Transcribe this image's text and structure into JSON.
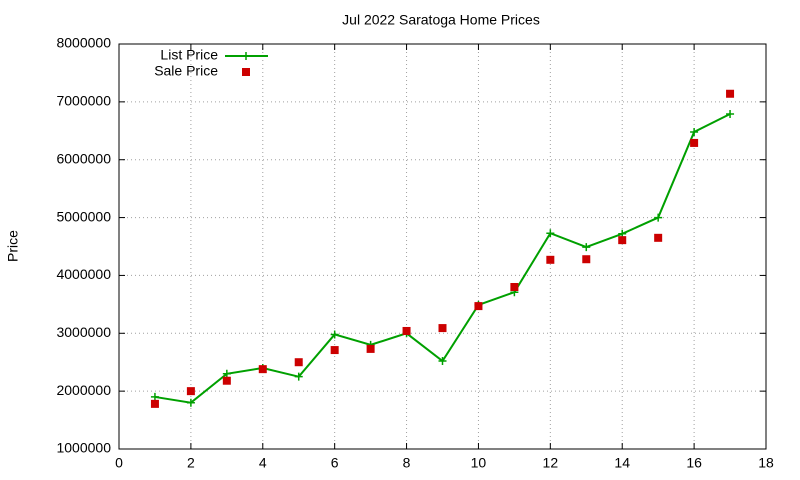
{
  "chart_data": {
    "type": "line",
    "title": "Jul 2022 Saratoga Home Prices",
    "y_label": "Price",
    "x": [
      1,
      2,
      3,
      4,
      5,
      6,
      7,
      8,
      9,
      10,
      11,
      12,
      13,
      14,
      15,
      16,
      17
    ],
    "series": [
      {
        "name": "List Price",
        "color": "#00a000",
        "marker": "plus",
        "values": [
          1900000,
          1800000,
          2300000,
          2400000,
          2250000,
          2980000,
          2800000,
          3000000,
          2520000,
          3490000,
          3710000,
          4730000,
          4490000,
          4720000,
          5000000,
          6480000,
          6790000
        ]
      },
      {
        "name": "Sale Price",
        "color": "#cc0000",
        "marker": "square",
        "values": [
          1780000,
          2000000,
          2180000,
          2380000,
          2500000,
          2710000,
          2730000,
          3040000,
          3090000,
          3470000,
          3800000,
          4270000,
          4280000,
          4610000,
          4650000,
          6290000,
          7140000
        ]
      }
    ],
    "xlim": [
      0,
      18
    ],
    "xticks": [
      0,
      2,
      4,
      6,
      8,
      10,
      12,
      14,
      16,
      18
    ],
    "ylim": [
      1000000,
      8000000
    ],
    "yticks": [
      1000000,
      2000000,
      3000000,
      4000000,
      5000000,
      6000000,
      7000000,
      8000000
    ],
    "grid": true,
    "legend": "top-left"
  }
}
